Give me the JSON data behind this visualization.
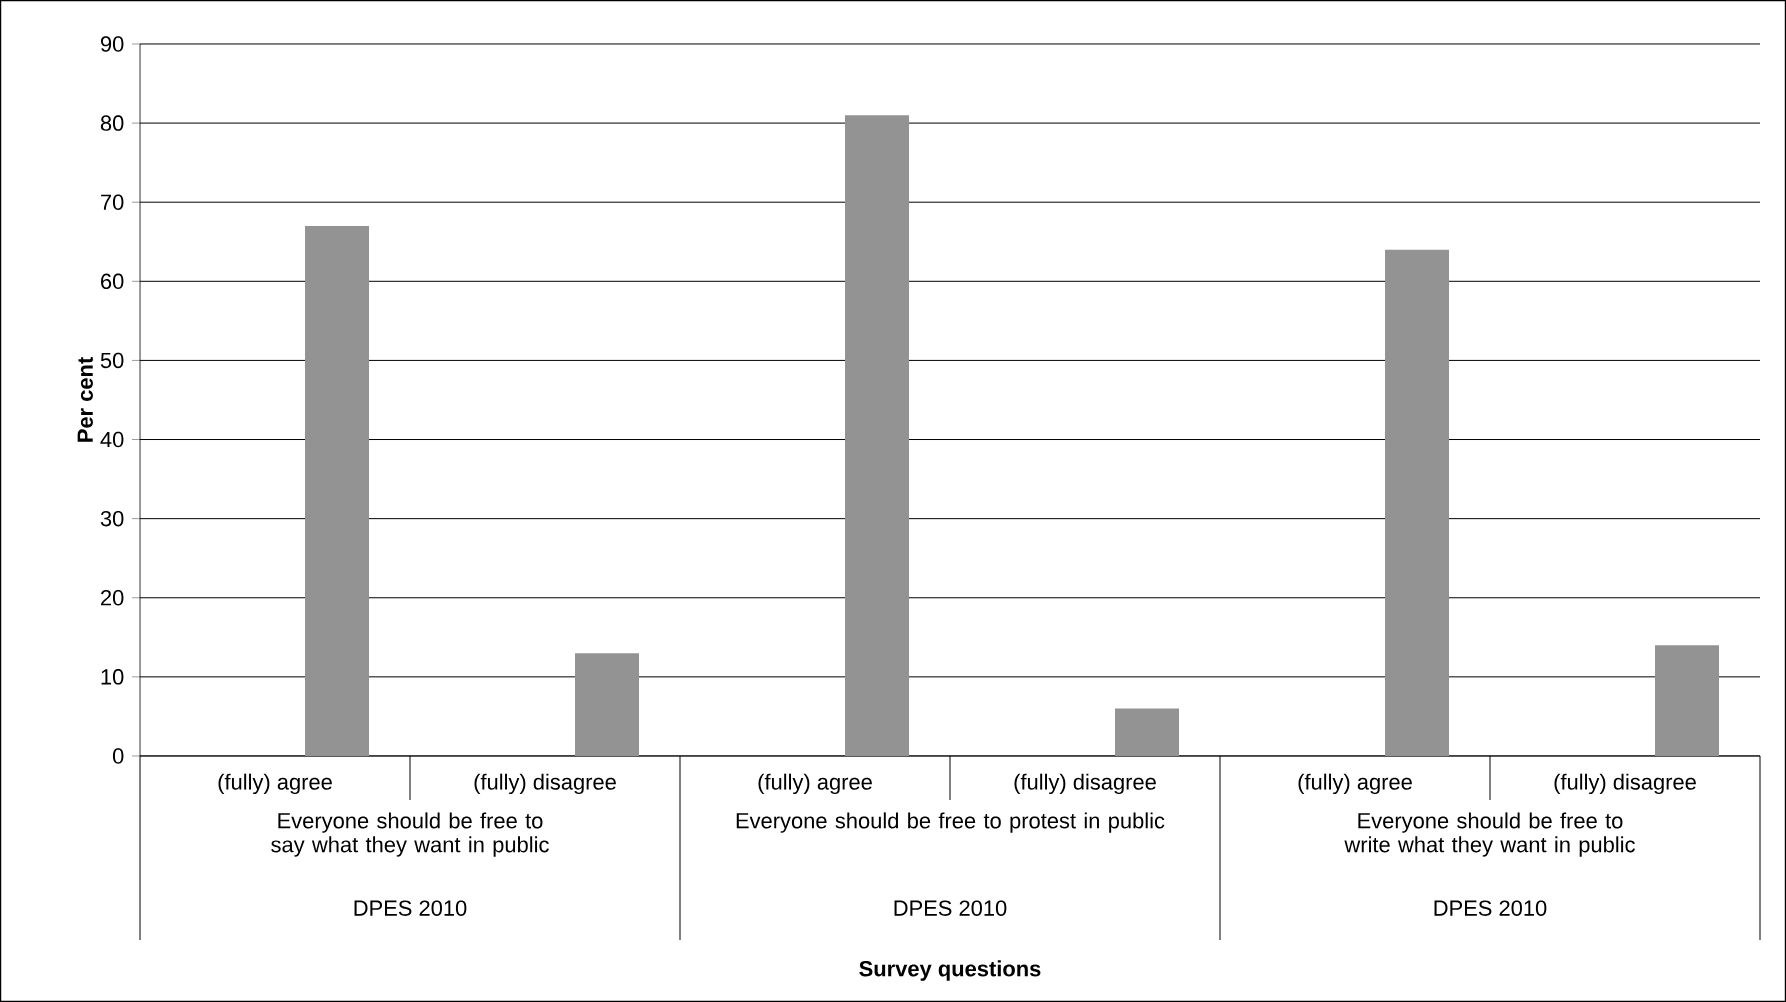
{
  "chart_data": {
    "type": "bar",
    "ylabel": "Per cent",
    "categories": [
      "(fully) agree",
      "(fully) disagree",
      "(fully) agree",
      "(fully) disagree",
      "(fully) agree",
      "(fully) disagree"
    ],
    "values": [
      67,
      13,
      81,
      6,
      64,
      14
    ],
    "color": "#939393",
    "ylim": [
      0,
      90
    ],
    "yticks": [
      0,
      10,
      20,
      30,
      40,
      50,
      60,
      70,
      80,
      90
    ],
    "grid": "y",
    "annotations": [
      "Everyone should be free to say what they want in public",
      "Everyone should be free to protest in public",
      "Everyone should be free to write what they want in public",
      "DPES 2010",
      "DPES 2010",
      "DPES 2010",
      "Survey questions"
    ]
  }
}
